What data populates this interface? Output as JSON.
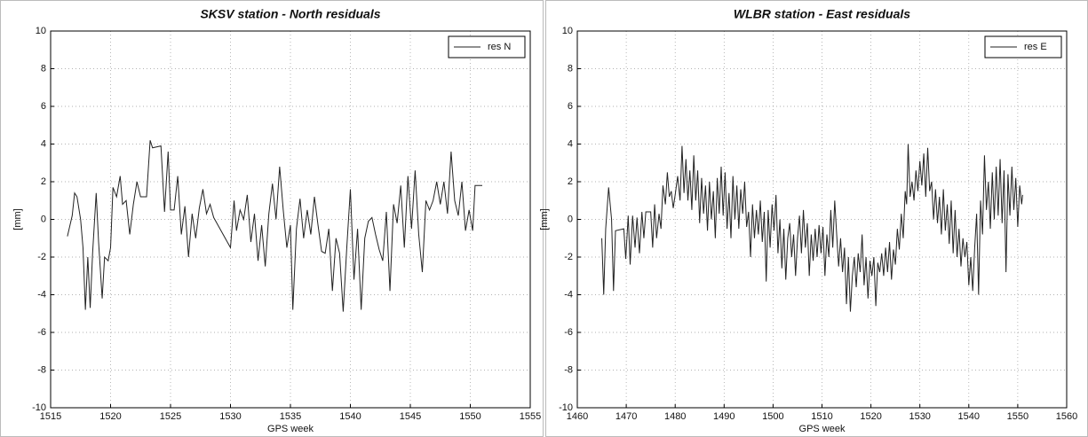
{
  "chart_data": [
    {
      "type": "line",
      "title": "SKSV station - North residuals",
      "xlabel": "GPS week",
      "ylabel": "[mm]",
      "xlim": [
        1515,
        1555
      ],
      "xticks": [
        1515,
        1520,
        1525,
        1530,
        1535,
        1540,
        1545,
        1550,
        1555
      ],
      "ylim": [
        -10,
        10
      ],
      "yticks": [
        -10,
        -8,
        -6,
        -4,
        -2,
        0,
        2,
        4,
        6,
        8,
        10
      ],
      "grid": true,
      "legend": "upper right",
      "x": [
        1516.4,
        1516.8,
        1517.0,
        1517.2,
        1517.5,
        1517.7,
        1517.9,
        1518.1,
        1518.3,
        1518.5,
        1518.8,
        1519.0,
        1519.3,
        1519.5,
        1519.8,
        1520.0,
        1520.2,
        1520.5,
        1520.8,
        1521.0,
        1521.3,
        1521.6,
        1521.9,
        1522.2,
        1522.5,
        1523.0,
        1523.3,
        1523.5,
        1524.2,
        1524.5,
        1524.8,
        1525.0,
        1525.3,
        1525.6,
        1525.9,
        1526.2,
        1526.5,
        1526.8,
        1527.1,
        1527.4,
        1527.7,
        1528.0,
        1528.3,
        1528.6,
        1530.0,
        1530.3,
        1530.5,
        1530.8,
        1531.1,
        1531.4,
        1531.7,
        1532.0,
        1532.3,
        1532.6,
        1532.9,
        1533.2,
        1533.5,
        1533.8,
        1534.1,
        1534.4,
        1534.7,
        1535.0,
        1535.2,
        1535.5,
        1535.8,
        1536.1,
        1536.4,
        1536.7,
        1537.0,
        1537.3,
        1537.6,
        1537.9,
        1538.2,
        1538.5,
        1538.8,
        1539.1,
        1539.4,
        1539.7,
        1540.0,
        1540.3,
        1540.6,
        1540.9,
        1541.2,
        1541.5,
        1541.8,
        1542.1,
        1542.4,
        1542.7,
        1543.0,
        1543.3,
        1543.6,
        1543.9,
        1544.2,
        1544.5,
        1544.8,
        1545.1,
        1545.4,
        1545.7,
        1546.0,
        1546.3,
        1546.6,
        1546.9,
        1547.2,
        1547.5,
        1547.8,
        1548.1,
        1548.4,
        1548.7,
        1549.0,
        1549.3,
        1549.6,
        1549.9,
        1550.2,
        1550.4,
        1551.0
      ],
      "series": [
        {
          "name": "res N",
          "color": "#222222",
          "values": [
            -0.9,
            0.2,
            1.4,
            1.2,
            0.0,
            -1.5,
            -4.8,
            -2.0,
            -4.7,
            -1.8,
            1.4,
            -1.2,
            -4.2,
            -2.0,
            -2.2,
            -1.5,
            1.7,
            1.2,
            2.3,
            0.8,
            1.0,
            -0.8,
            0.8,
            2.0,
            1.2,
            1.2,
            4.2,
            3.8,
            3.9,
            0.4,
            3.6,
            0.5,
            0.5,
            2.3,
            -0.8,
            0.7,
            -2.0,
            0.3,
            -1.0,
            0.6,
            1.6,
            0.3,
            0.8,
            0.1,
            -1.5,
            1.0,
            -0.6,
            0.5,
            0.0,
            1.3,
            -1.2,
            0.3,
            -2.2,
            -0.3,
            -2.5,
            0.3,
            1.9,
            0.0,
            2.8,
            0.5,
            -1.5,
            -0.3,
            -4.8,
            -0.5,
            1.1,
            -1.0,
            0.5,
            -0.8,
            1.2,
            -0.3,
            -1.7,
            -1.8,
            -0.5,
            -3.8,
            -1.0,
            -1.8,
            -4.9,
            -1.5,
            1.6,
            -3.2,
            -0.5,
            -4.8,
            -1.0,
            -0.1,
            0.1,
            -0.8,
            -1.6,
            -2.2,
            0.4,
            -3.8,
            0.8,
            -0.2,
            1.8,
            -1.5,
            2.3,
            -0.5,
            2.6,
            -0.8,
            -2.8,
            1.0,
            0.5,
            1.0,
            2.0,
            0.8,
            2.0,
            0.3,
            3.6,
            1.0,
            0.2,
            2.0,
            -0.6,
            0.5,
            -0.6,
            1.8,
            1.8
          ]
        }
      ]
    },
    {
      "type": "line",
      "title": "WLBR station - East residuals",
      "xlabel": "GPS week",
      "ylabel": "[mm]",
      "xlim": [
        1460,
        1560
      ],
      "xticks": [
        1460,
        1470,
        1480,
        1490,
        1500,
        1510,
        1520,
        1530,
        1540,
        1550,
        1560
      ],
      "ylim": [
        -10,
        10
      ],
      "yticks": [
        -10,
        -8,
        -6,
        -4,
        -2,
        0,
        2,
        4,
        6,
        8,
        10
      ],
      "grid": true,
      "legend": "upper right",
      "x": [
        1465,
        1465.4,
        1465.8,
        1466.4,
        1467,
        1467.4,
        1467.8,
        1469.5,
        1469.9,
        1470.4,
        1470.8,
        1471.3,
        1471.8,
        1472.2,
        1472.7,
        1473.2,
        1473.6,
        1474,
        1475,
        1475.4,
        1475.8,
        1476.2,
        1476.7,
        1477.1,
        1477.5,
        1478,
        1478.4,
        1478.8,
        1479.2,
        1479.6,
        1480,
        1480.5,
        1481,
        1481.4,
        1481.8,
        1482.2,
        1482.6,
        1483,
        1483.4,
        1483.8,
        1484.2,
        1484.6,
        1485,
        1485.4,
        1485.8,
        1486.2,
        1486.6,
        1487,
        1487.4,
        1487.8,
        1488.2,
        1488.6,
        1489,
        1489.4,
        1489.8,
        1490.2,
        1490.6,
        1491,
        1491.4,
        1491.8,
        1492.2,
        1492.6,
        1493,
        1493.4,
        1493.8,
        1494.2,
        1494.6,
        1495,
        1495.4,
        1495.8,
        1496.2,
        1496.6,
        1497,
        1497.4,
        1497.8,
        1498.2,
        1498.6,
        1499,
        1499.4,
        1499.8,
        1500.2,
        1500.6,
        1501,
        1501.4,
        1501.8,
        1502.2,
        1502.6,
        1503,
        1503.4,
        1503.8,
        1504.2,
        1504.6,
        1505,
        1505.4,
        1505.8,
        1506.2,
        1506.6,
        1507,
        1507.4,
        1507.8,
        1508.2,
        1508.6,
        1509,
        1509.4,
        1509.8,
        1510.2,
        1510.6,
        1511,
        1511.4,
        1511.8,
        1512.2,
        1512.6,
        1513,
        1513.4,
        1513.8,
        1514.2,
        1514.6,
        1515,
        1515.4,
        1515.8,
        1516.2,
        1516.6,
        1517,
        1517.4,
        1517.8,
        1518.2,
        1518.6,
        1519,
        1519.4,
        1519.8,
        1520.2,
        1520.6,
        1521,
        1521.4,
        1521.8,
        1522.2,
        1522.6,
        1523,
        1523.4,
        1523.8,
        1524.2,
        1524.6,
        1525,
        1525.4,
        1525.8,
        1526.2,
        1526.6,
        1527,
        1527.3,
        1527.6,
        1528,
        1528.4,
        1528.8,
        1529.2,
        1529.6,
        1530,
        1530.4,
        1530.8,
        1531.2,
        1531.6,
        1532,
        1532.4,
        1532.8,
        1533.2,
        1533.6,
        1534,
        1534.4,
        1534.8,
        1535.2,
        1535.6,
        1536,
        1536.4,
        1536.8,
        1537.2,
        1537.6,
        1538,
        1538.4,
        1538.8,
        1539.2,
        1539.6,
        1540,
        1540.4,
        1540.8,
        1541.2,
        1541.6,
        1542,
        1542.4,
        1542.8,
        1543.2,
        1543.6,
        1544,
        1544.4,
        1544.8,
        1545.2,
        1545.6,
        1546,
        1546.4,
        1546.8,
        1547.2,
        1547.6,
        1548,
        1548.4,
        1548.8,
        1549.2,
        1549.6,
        1550,
        1550.4,
        1550.8,
        1551
      ],
      "series": [
        {
          "name": "res E",
          "color": "#222222",
          "values": [
            -1.0,
            -4.0,
            -0.5,
            1.7,
            0.0,
            -3.8,
            -0.6,
            -0.5,
            -2.1,
            0.2,
            -2.4,
            0.2,
            -1.5,
            0.1,
            -1.8,
            0.4,
            -1.0,
            0.4,
            0.4,
            -1.5,
            0.8,
            -1.0,
            0.3,
            -0.5,
            1.8,
            0.8,
            2.5,
            1.2,
            1.5,
            0.6,
            1.3,
            2.3,
            1.0,
            3.9,
            1.4,
            3.2,
            1.0,
            2.6,
            0.5,
            3.4,
            1.0,
            2.6,
            -0.2,
            2.2,
            0.3,
            1.8,
            -0.6,
            2.0,
            0.0,
            1.5,
            -1.0,
            2.2,
            0.3,
            2.8,
            0.2,
            2.5,
            -0.5,
            1.4,
            -1.0,
            2.3,
            0.0,
            1.8,
            -0.5,
            1.6,
            0.3,
            2.0,
            -0.4,
            0.4,
            -2.0,
            0.8,
            -1.0,
            0.5,
            -0.8,
            1.0,
            -1.2,
            0.4,
            -3.3,
            0.5,
            -1.5,
            0.8,
            -0.6,
            1.3,
            -1.8,
            0.0,
            -2.6,
            -0.5,
            -3.2,
            -1.0,
            -0.2,
            -2.0,
            -0.8,
            -3.0,
            -1.0,
            0.2,
            -1.8,
            0.5,
            -1.5,
            -0.2,
            -3.0,
            -0.8,
            -2.2,
            -0.5,
            -2.0,
            -0.3,
            -1.8,
            -0.4,
            -3.0,
            -0.8,
            -2.0,
            0.5,
            -1.5,
            1.0,
            -0.8,
            -2.5,
            -1.0,
            -2.8,
            -1.5,
            -4.5,
            -2.0,
            -4.9,
            -3.0,
            -2.0,
            -3.6,
            -1.8,
            -2.8,
            -0.8,
            -3.5,
            -2.0,
            -4.2,
            -2.2,
            -3.0,
            -2.0,
            -4.6,
            -2.3,
            -2.8,
            -1.8,
            -3.0,
            -1.5,
            -2.8,
            -1.2,
            -3.2,
            -1.6,
            -2.4,
            -0.5,
            -1.6,
            0.3,
            -1.0,
            1.5,
            0.8,
            4.0,
            1.2,
            2.0,
            1.0,
            2.6,
            1.5,
            3.1,
            1.8,
            3.5,
            1.2,
            3.8,
            1.5,
            2.0,
            0.0,
            1.6,
            -0.2,
            1.2,
            -0.8,
            1.6,
            -0.6,
            0.8,
            -1.3,
            1.0,
            -1.8,
            0.5,
            -2.0,
            -0.5,
            -2.5,
            -1.0,
            -2.0,
            -1.2,
            -3.5,
            -2.0,
            -3.8,
            -1.5,
            0.3,
            -4.0,
            1.0,
            -0.8,
            3.4,
            0.5,
            2.0,
            -0.5,
            2.5,
            0.0,
            2.8,
            0.2,
            3.2,
            -0.2,
            2.6,
            -2.8,
            2.4,
            0.2,
            2.8,
            0.5,
            2.2,
            -0.4,
            1.8,
            0.8,
            1.3
          ]
        }
      ]
    }
  ]
}
